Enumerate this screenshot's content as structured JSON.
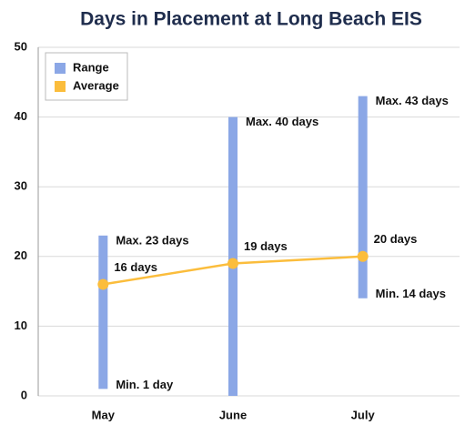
{
  "chart_data": {
    "type": "range_line",
    "title": "Days in Placement at Long Beach EIS",
    "categories": [
      "May",
      "June",
      "July"
    ],
    "series": [
      {
        "name": "Range",
        "color": "#8ba7e6",
        "low": [
          1,
          0,
          14
        ],
        "high": [
          23,
          40,
          43
        ],
        "low_labels": [
          "Min. 1 day",
          null,
          "Min. 14 days"
        ],
        "high_labels": [
          "Max. 23 days",
          "Max. 40 days",
          "Max. 43 days"
        ]
      },
      {
        "name": "Average",
        "color": "#fbbd3c",
        "values": [
          16,
          19,
          20
        ],
        "value_labels": [
          "16 days",
          "19 days",
          "20 days"
        ]
      }
    ],
    "ylim": [
      0,
      50
    ],
    "yticks": [
      0,
      10,
      20,
      30,
      40,
      50
    ],
    "grid": true,
    "legend": "top-left"
  }
}
